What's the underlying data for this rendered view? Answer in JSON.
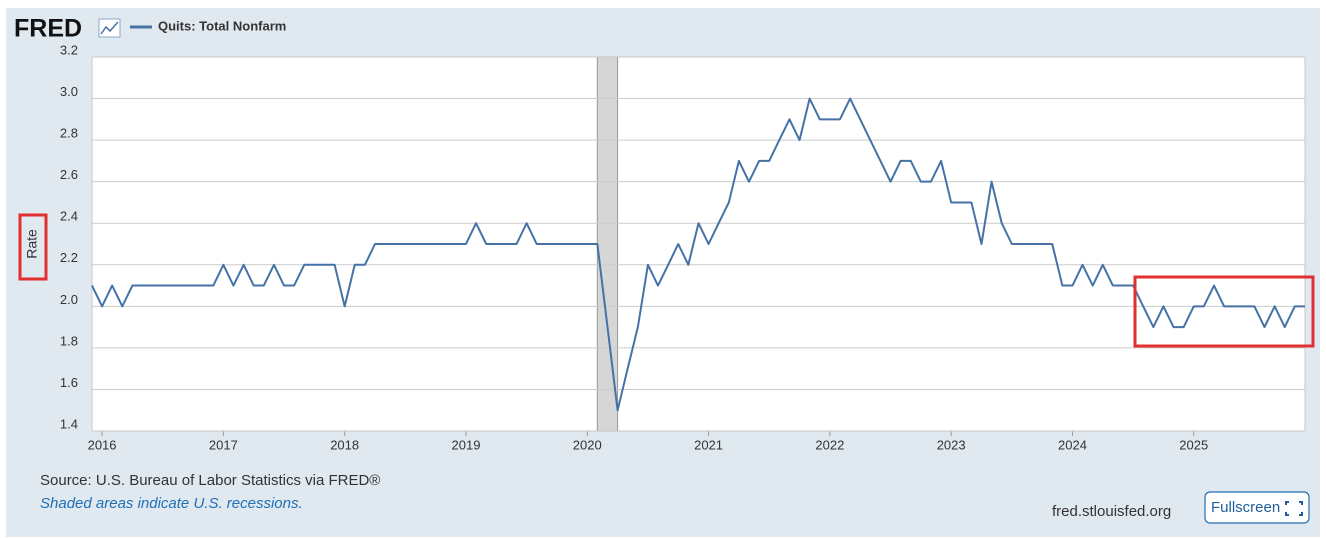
{
  "header": {
    "logo": "FRED"
  },
  "chart_data": {
    "type": "line",
    "y_label": "Rate",
    "x": [
      2015.917,
      2016,
      2016.083,
      2016.167,
      2016.25,
      2016.333,
      2016.417,
      2016.5,
      2016.583,
      2016.667,
      2016.75,
      2016.833,
      2016.917,
      2017,
      2017.083,
      2017.167,
      2017.25,
      2017.333,
      2017.417,
      2017.5,
      2017.583,
      2017.667,
      2017.75,
      2017.833,
      2017.917,
      2018,
      2018.083,
      2018.167,
      2018.25,
      2018.333,
      2018.417,
      2018.5,
      2018.583,
      2018.667,
      2018.75,
      2018.833,
      2018.917,
      2019,
      2019.083,
      2019.167,
      2019.25,
      2019.333,
      2019.417,
      2019.5,
      2019.583,
      2019.667,
      2019.75,
      2019.833,
      2019.917,
      2020,
      2020.083,
      2020.167,
      2020.25,
      2020.333,
      2020.417,
      2020.5,
      2020.583,
      2020.667,
      2020.75,
      2020.833,
      2020.917,
      2021,
      2021.083,
      2021.167,
      2021.25,
      2021.333,
      2021.417,
      2021.5,
      2021.583,
      2021.667,
      2021.75,
      2021.833,
      2021.917,
      2022,
      2022.083,
      2022.167,
      2022.25,
      2022.333,
      2022.417,
      2022.5,
      2022.583,
      2022.667,
      2022.75,
      2022.833,
      2022.917,
      2023,
      2023.083,
      2023.167,
      2023.25,
      2023.333,
      2023.417,
      2023.5,
      2023.583,
      2023.667,
      2023.75,
      2023.833,
      2023.917,
      2024,
      2024.083,
      2024.167,
      2024.25,
      2024.333,
      2024.417,
      2024.5,
      2024.583,
      2024.667,
      2024.75,
      2024.833,
      2024.917,
      2025,
      2025.083,
      2025.167,
      2025.25,
      2025.333,
      2025.417,
      2025.5,
      2025.583,
      2025.667,
      2025.75,
      2025.833,
      2025.917
    ],
    "series": [
      {
        "name": "Quits: Total Nonfarm",
        "color": "#4572a7",
        "values": [
          2.1,
          2.0,
          2.1,
          2.0,
          2.1,
          2.1,
          2.1,
          2.1,
          2.1,
          2.1,
          2.1,
          2.1,
          2.1,
          2.2,
          2.1,
          2.2,
          2.1,
          2.1,
          2.2,
          2.1,
          2.1,
          2.2,
          2.2,
          2.2,
          2.2,
          2.0,
          2.2,
          2.2,
          2.3,
          2.3,
          2.3,
          2.3,
          2.3,
          2.3,
          2.3,
          2.3,
          2.3,
          2.3,
          2.4,
          2.3,
          2.3,
          2.3,
          2.3,
          2.4,
          2.3,
          2.3,
          2.3,
          2.3,
          2.3,
          2.3,
          2.3,
          1.9,
          1.5,
          1.7,
          1.9,
          2.2,
          2.1,
          2.2,
          2.3,
          2.2,
          2.4,
          2.3,
          2.4,
          2.5,
          2.7,
          2.6,
          2.7,
          2.7,
          2.8,
          2.9,
          2.8,
          3.0,
          2.9,
          2.9,
          2.9,
          3.0,
          2.9,
          2.8,
          2.7,
          2.6,
          2.7,
          2.7,
          2.6,
          2.6,
          2.7,
          2.5,
          2.5,
          2.5,
          2.3,
          2.6,
          2.4,
          2.3,
          2.3,
          2.3,
          2.3,
          2.3,
          2.1,
          2.1,
          2.2,
          2.1,
          2.2,
          2.1,
          2.1,
          2.1,
          2.0,
          1.9,
          2.0,
          1.9,
          1.9,
          2.0,
          2.0,
          2.1,
          2.0,
          2.0,
          2.0,
          2.0,
          1.9,
          2.0,
          1.9,
          2.0,
          2.0
        ]
      }
    ],
    "xlim": [
      2015.917,
      2025.917
    ],
    "xticks": [
      2016,
      2017,
      2018,
      2019,
      2020,
      2021,
      2022,
      2023,
      2024,
      2025
    ],
    "ylim": [
      1.4,
      3.2
    ],
    "yticks": [
      1.4,
      1.6,
      1.8,
      {
        "value": 2,
        "label": "2.0"
      },
      2.2,
      2.4,
      2.6,
      2.8,
      {
        "value": 3,
        "label": "3.0"
      },
      3.2
    ],
    "grid": true,
    "shaded_areas": [
      {
        "start": 2020.083,
        "end": 2020.25,
        "color": "#cccccc"
      }
    ]
  },
  "footer": {
    "source": "Source: U.S. Bureau of Labor Statistics via FRED®",
    "note": "Shaded areas indicate U.S. recessions.",
    "site": "fred.stlouisfed.org",
    "button": "Fullscreen"
  }
}
